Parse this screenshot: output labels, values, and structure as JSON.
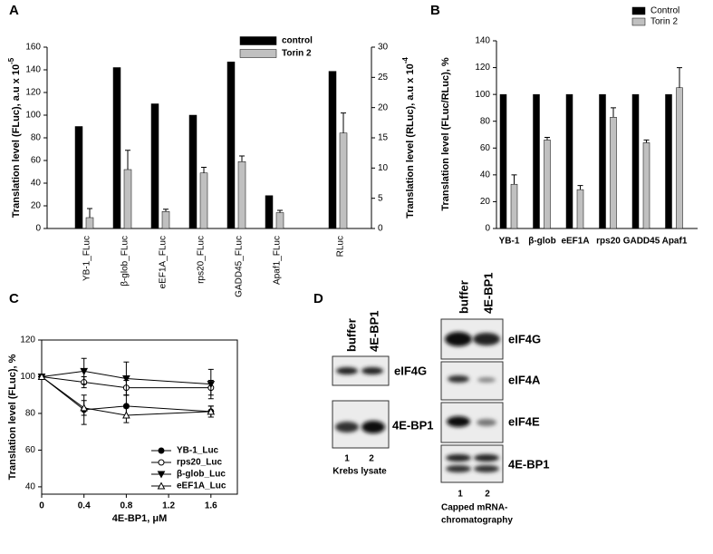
{
  "chart_data": [
    {
      "type": "bar",
      "panel": "A",
      "y_label": "Translation level (FLuc), a.u x 10",
      "y_label_exponent": "-5",
      "y2_label": "Translation level (RLuc), a.u x 10",
      "y2_label_exponent": "-4",
      "categories": [
        "YB-1_FLuc",
        "β-glob_FLuc",
        "eEF1A_FLuc",
        "rps20_FLuc",
        "GADD45_FLuc",
        "Apaf1_FLuc",
        "RLuc"
      ],
      "series": [
        {
          "name": "control",
          "color": "#000000",
          "values": [
            90,
            142,
            110,
            100,
            147,
            29,
            null
          ],
          "y2_values": [
            null,
            null,
            null,
            null,
            null,
            null,
            26
          ]
        },
        {
          "name": "Torin 2",
          "color": "#c0c0c0",
          "values": [
            9.6,
            52,
            15,
            49,
            59,
            14,
            null
          ],
          "errors": [
            8,
            17,
            2,
            5,
            5,
            2,
            null
          ],
          "y2_values": [
            null,
            null,
            null,
            null,
            null,
            null,
            15.8
          ],
          "y2_errors": [
            null,
            null,
            null,
            null,
            null,
            null,
            3.3
          ]
        }
      ],
      "ylim": [
        0,
        160
      ],
      "yticks": [
        0,
        20,
        40,
        60,
        80,
        100,
        120,
        140,
        160
      ],
      "y2lim": [
        0,
        30
      ],
      "y2ticks": [
        0,
        5,
        10,
        15,
        20,
        25,
        30
      ],
      "legend": "upper right"
    },
    {
      "type": "bar",
      "panel": "B",
      "y_label": "Translation level (FLuc/RLuc), %",
      "categories": [
        "YB-1",
        "β-glob",
        "eEF1A",
        "rps20",
        "GADD45",
        "Apaf1"
      ],
      "series": [
        {
          "name": "Control",
          "color": "#000000",
          "values": [
            100,
            100,
            100,
            100,
            100,
            100
          ]
        },
        {
          "name": "Torin 2",
          "color": "#c0c0c0",
          "values": [
            33,
            66,
            29,
            83,
            64,
            105
          ],
          "errors": [
            7,
            2,
            3,
            7,
            2,
            15
          ]
        }
      ],
      "ylim": [
        0,
        140
      ],
      "yticks": [
        0,
        20,
        40,
        60,
        80,
        100,
        120,
        140
      ],
      "legend": "upper right"
    },
    {
      "type": "line",
      "panel": "C",
      "x_label": "4E-BP1, μM",
      "y_label": "Translation level (FLuc), %",
      "x": [
        0,
        0.4,
        0.8,
        1.6
      ],
      "series": [
        {
          "name": "YB-1_Luc",
          "color": "#000000",
          "marker": "circle-filled",
          "values": [
            100,
            82,
            84,
            81
          ],
          "errors": [
            0,
            8,
            6,
            3
          ]
        },
        {
          "name": "rps20_Luc",
          "color": "#000000",
          "marker": "circle-open",
          "values": [
            100,
            97,
            94,
            94
          ],
          "errors": [
            0,
            3,
            4,
            4
          ]
        },
        {
          "name": "β-glob_Luc",
          "color": "#000000",
          "marker": "triangle-down-filled",
          "values": [
            100,
            103,
            99,
            96
          ],
          "errors": [
            0,
            7,
            9,
            8
          ]
        },
        {
          "name": "eEF1A_Luc",
          "color": "#000000",
          "marker": "triangle-up-open",
          "values": [
            100,
            83,
            79,
            81
          ],
          "errors": [
            0,
            4,
            4,
            3
          ]
        }
      ],
      "xlim": [
        0,
        1.85
      ],
      "xticks": [
        0,
        0.4,
        0.8,
        1.2,
        1.6
      ],
      "ylim": [
        36,
        120
      ],
      "yticks": [
        40,
        60,
        80,
        100,
        120
      ],
      "legend": "lower right"
    }
  ],
  "blots": {
    "panel": "D",
    "left": {
      "lanes": [
        "buffer",
        "4E-BP1"
      ],
      "blots": [
        "eIF4G",
        "4E-BP1"
      ],
      "lane_numbers": [
        "1",
        "2"
      ],
      "caption": "Krebs lysate"
    },
    "right": {
      "lanes": [
        "buffer",
        "4E-BP1"
      ],
      "blots": [
        "eIF4G",
        "eIF4A",
        "eIF4E",
        "4E-BP1"
      ],
      "lane_numbers": [
        "1",
        "2"
      ],
      "caption": [
        "Capped mRNA-",
        "chromatography"
      ]
    }
  }
}
